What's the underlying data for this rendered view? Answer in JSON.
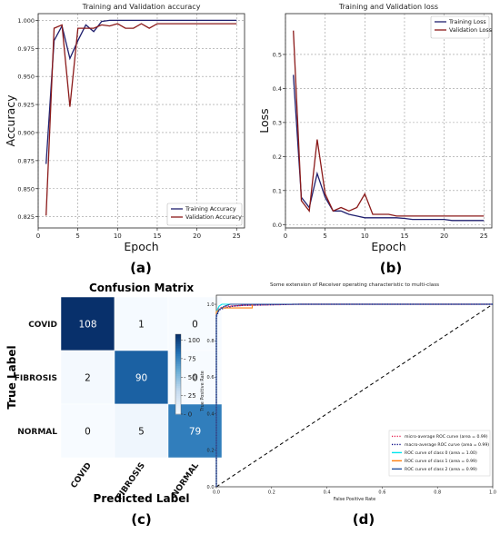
{
  "chart_data": [
    {
      "id": "a",
      "type": "line",
      "panel_label": "(a)",
      "title": "Training and Validation accuracy",
      "xlabel": "Epoch",
      "ylabel": "Accuracy",
      "xlim": [
        0,
        26
      ],
      "ylim": [
        0.815,
        1.006
      ],
      "xticks": [
        0,
        5,
        10,
        15,
        20,
        25
      ],
      "yticks": [
        0.825,
        0.85,
        0.875,
        0.9,
        0.925,
        0.95,
        0.975,
        1.0
      ],
      "ytick_labels": [
        "0.825",
        "0.850",
        "0.875",
        "0.900",
        "0.925",
        "0.950",
        "0.975",
        "1.000"
      ],
      "grid": true,
      "legend": "lower-right",
      "x": [
        1,
        2,
        3,
        4,
        5,
        6,
        7,
        8,
        9,
        10,
        11,
        12,
        13,
        14,
        15,
        16,
        17,
        18,
        19,
        20,
        21,
        22,
        23,
        24,
        25
      ],
      "series": [
        {
          "name": "Training Accuracy",
          "color": "#1f1f6e",
          "values": [
            0.872,
            0.982,
            0.995,
            0.966,
            0.982,
            0.996,
            0.99,
            0.999,
            1.0,
            1.0,
            1.0,
            1.0,
            1.0,
            1.0,
            1.0,
            1.0,
            1.0,
            1.0,
            1.0,
            1.0,
            1.0,
            1.0,
            1.0,
            1.0,
            1.0
          ]
        },
        {
          "name": "Validation Accuracy",
          "color": "#8b1a1a",
          "values": [
            0.826,
            0.993,
            0.996,
            0.923,
            0.993,
            0.993,
            0.993,
            0.996,
            0.995,
            0.997,
            0.993,
            0.993,
            0.997,
            0.993,
            0.997,
            0.997,
            0.997,
            0.997,
            0.997,
            0.997,
            0.997,
            0.997,
            0.997,
            0.997,
            0.997
          ]
        }
      ]
    },
    {
      "id": "b",
      "type": "line",
      "panel_label": "(b)",
      "title": "Training and Validation loss",
      "xlabel": "Epoch",
      "ylabel": "Loss",
      "xlim": [
        0,
        26
      ],
      "ylim": [
        -0.01,
        0.62
      ],
      "xticks": [
        0,
        5,
        10,
        15,
        20,
        25
      ],
      "yticks": [
        0.0,
        0.1,
        0.2,
        0.3,
        0.4,
        0.5
      ],
      "ytick_labels": [
        "0.0",
        "0.1",
        "0.2",
        "0.3",
        "0.4",
        "0.5"
      ],
      "grid": true,
      "legend": "top-right",
      "x": [
        1,
        2,
        3,
        4,
        5,
        6,
        7,
        8,
        9,
        10,
        11,
        12,
        13,
        14,
        15,
        16,
        17,
        18,
        19,
        20,
        21,
        22,
        23,
        24,
        25
      ],
      "series": [
        {
          "name": "Training Loss",
          "color": "#1f1f6e",
          "values": [
            0.44,
            0.08,
            0.05,
            0.15,
            0.08,
            0.04,
            0.04,
            0.03,
            0.025,
            0.02,
            0.02,
            0.02,
            0.02,
            0.02,
            0.018,
            0.015,
            0.015,
            0.015,
            0.015,
            0.015,
            0.012,
            0.012,
            0.012,
            0.012,
            0.012
          ]
        },
        {
          "name": "Validation Loss",
          "color": "#8b1a1a",
          "values": [
            0.57,
            0.07,
            0.04,
            0.25,
            0.09,
            0.04,
            0.05,
            0.04,
            0.05,
            0.09,
            0.03,
            0.03,
            0.03,
            0.025,
            0.025,
            0.025,
            0.025,
            0.025,
            0.025,
            0.025,
            0.025,
            0.025,
            0.025,
            0.025,
            0.025
          ]
        }
      ]
    },
    {
      "id": "c",
      "type": "heatmap",
      "panel_label": "(c)",
      "title": "Confusion Matrix",
      "xlabel": "Predicted Label",
      "ylabel": "True Label",
      "row_labels": [
        "COVID",
        "FIBROSIS",
        "NORMAL"
      ],
      "col_labels": [
        "COVID",
        "FIBROSIS",
        "NORMAL"
      ],
      "values": [
        [
          108,
          1,
          0
        ],
        [
          2,
          90,
          0
        ],
        [
          0,
          5,
          79
        ]
      ],
      "colorbar_ticks": [
        0,
        25,
        50,
        75,
        100
      ],
      "colorbar_range": [
        0,
        108
      ]
    },
    {
      "id": "d",
      "type": "line",
      "panel_label": "(d)",
      "title": "Some extension of Receiver operating characteristic to multi-class",
      "xlabel": "False Positive Rate",
      "ylabel": "True Positive Rate",
      "xlim": [
        0,
        1.0
      ],
      "ylim": [
        0,
        1.05
      ],
      "xticks": [
        0.0,
        0.2,
        0.4,
        0.6,
        0.8,
        1.0
      ],
      "yticks": [
        0.0,
        0.2,
        0.4,
        0.6,
        0.8,
        1.0
      ],
      "legend": "lower-right",
      "series": [
        {
          "name": "micro-average ROC curve (area = 0.99)",
          "color": "#e6194b",
          "dash": "dotted",
          "x": [
            0,
            0,
            0.01,
            0.02,
            0.05,
            0.1,
            0.3,
            1.0
          ],
          "y": [
            0,
            0.95,
            0.975,
            0.985,
            0.99,
            0.995,
            1.0,
            1.0
          ]
        },
        {
          "name": "macro-average ROC curve (area = 0.99)",
          "color": "#000080",
          "dash": "dotted",
          "x": [
            0,
            0,
            0.01,
            0.03,
            0.06,
            0.1,
            0.3,
            1.0
          ],
          "y": [
            0,
            0.93,
            0.97,
            0.98,
            0.99,
            0.995,
            1.0,
            1.0
          ]
        },
        {
          "name": "ROC curve of class 0 (area = 1.00)",
          "color": "#00e5ee",
          "dash": "solid",
          "x": [
            0,
            0,
            0.01,
            0.02,
            0.04,
            1.0
          ],
          "y": [
            0,
            0.96,
            0.99,
            1.0,
            1.0,
            1.0
          ]
        },
        {
          "name": "ROC curve of class 1 (area = 0.99)",
          "color": "#ff7f0e",
          "dash": "solid",
          "x": [
            0,
            0,
            0.01,
            0.02,
            0.05,
            0.13,
            0.13,
            1.0
          ],
          "y": [
            0,
            0.96,
            0.97,
            0.98,
            0.98,
            0.98,
            1.0,
            1.0
          ]
        },
        {
          "name": "ROC curve of class 2 (area = 0.99)",
          "color": "#1f4e9c",
          "dash": "solid",
          "x": [
            0,
            0,
            0.01,
            0.03,
            0.05,
            1.0
          ],
          "y": [
            0,
            0.94,
            0.97,
            0.99,
            1.0,
            1.0
          ]
        }
      ]
    }
  ]
}
